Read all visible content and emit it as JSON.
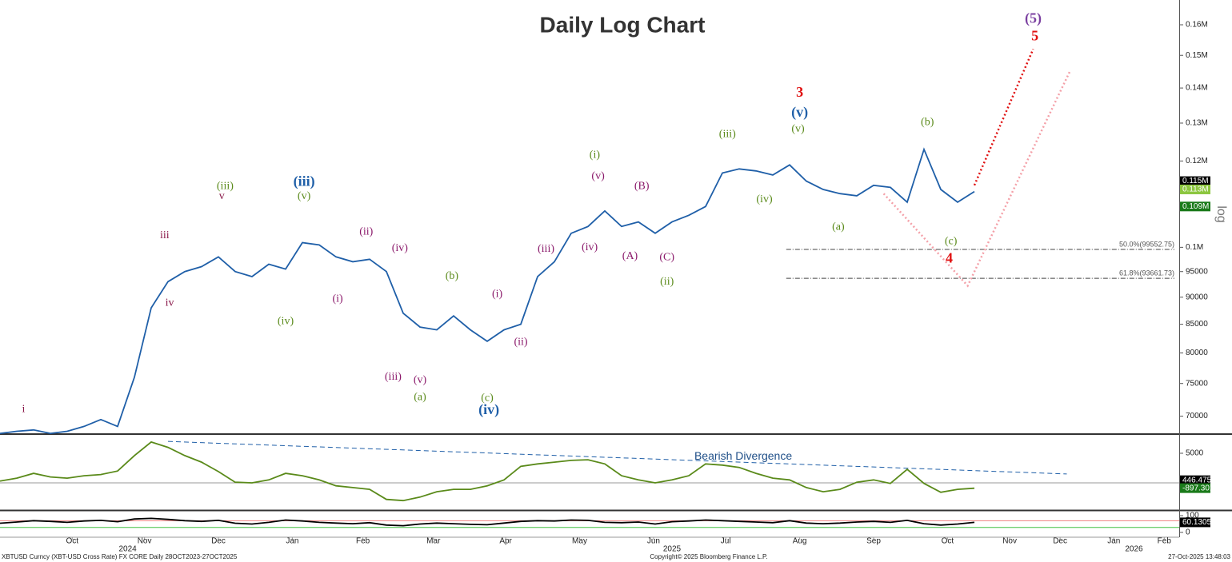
{
  "chart_data": [
    {
      "type": "line",
      "title": "Daily Log Chart",
      "axis_label": "log",
      "log_scale": true,
      "color": "#1f5fa8",
      "xlim": [
        0,
        70
      ],
      "ylim": [
        67400,
        168600
      ],
      "yticks": [
        {
          "value": 160000,
          "label": "0.16M"
        },
        {
          "value": 150000,
          "label": "0.15M"
        },
        {
          "value": 140000,
          "label": "0.14M"
        },
        {
          "value": 130000,
          "label": "0.13M"
        },
        {
          "value": 120000,
          "label": "0.12M"
        },
        {
          "value": 100000,
          "label": "0.1M"
        },
        95000,
        90000,
        85000,
        80000,
        75000,
        70000
      ],
      "values": [
        67500,
        67800,
        68000,
        67500,
        67800,
        68500,
        69500,
        68500,
        76000,
        88000,
        93000,
        95000,
        96000,
        98000,
        95000,
        94000,
        96500,
        95500,
        101000,
        100500,
        98000,
        97000,
        97500,
        95000,
        87000,
        84500,
        84000,
        86500,
        84000,
        82000,
        84000,
        85000,
        94000,
        97000,
        103000,
        104500,
        108000,
        104500,
        105500,
        103000,
        105500,
        107000,
        109000,
        117000,
        118000,
        117500,
        116500,
        119000,
        115000,
        113000,
        112000,
        111500,
        114000,
        113500,
        110000,
        123000,
        113000,
        110000,
        112500
      ],
      "price_tags": [
        {
          "value": 115000,
          "label": "0.115M",
          "color": "#000000"
        },
        {
          "value": 113000,
          "label": "0.113M",
          "color": "#8cc63f"
        },
        {
          "value": 109000,
          "label": "0.109M",
          "color": "#1a7a1a"
        }
      ],
      "levels": [
        {
          "label": "50.0%(99552.75)",
          "value": 99552.75,
          "from": 46.8
        },
        {
          "label": "61.8%(93661.73)",
          "value": 93661.73,
          "from": 46.8
        }
      ],
      "projections": [
        {
          "color": "#e01010",
          "points": [
            [
              58,
              114000
            ],
            [
              61.5,
              152000
            ]
          ]
        },
        {
          "color": "#f4a0a8",
          "points": [
            [
              52.6,
              112000
            ],
            [
              57.6,
              92200
            ],
            [
              63.7,
              145200
            ]
          ]
        }
      ],
      "annotations": [
        {
          "text": "i",
          "x": 1.4,
          "y": 71000,
          "color": "#8b1a4b"
        },
        {
          "text": "iii",
          "x": 9.8,
          "y": 102500,
          "color": "#8b1a4b"
        },
        {
          "text": "iv",
          "x": 10.1,
          "y": 88900,
          "color": "#8b1a4b"
        },
        {
          "text": "(iii)",
          "x": 13.4,
          "y": 113700,
          "color": "#5a8a1a"
        },
        {
          "text": "v",
          "x": 13.2,
          "y": 111300,
          "color": "#8b1a4b"
        },
        {
          "text": "(iv)",
          "x": 17,
          "y": 85500,
          "color": "#5a8a1a"
        },
        {
          "text": "(iii)",
          "x": 18.1,
          "y": 114700,
          "color": "#1f5fa8"
        },
        {
          "text": "(v)",
          "x": 18.1,
          "y": 111300,
          "color": "#5a8a1a"
        },
        {
          "text": "(ii)",
          "x": 21.8,
          "y": 103300,
          "color": "#8b1a6b"
        },
        {
          "text": "(i)",
          "x": 20.1,
          "y": 89600,
          "color": "#8b1a6b"
        },
        {
          "text": "(iv)",
          "x": 23.8,
          "y": 99800,
          "color": "#8b1a6b"
        },
        {
          "text": "(iii)",
          "x": 23.4,
          "y": 76000,
          "color": "#8b1a6b"
        },
        {
          "text": "(v)",
          "x": 25,
          "y": 75500,
          "color": "#8b1a6b"
        },
        {
          "text": "(a)",
          "x": 25,
          "y": 72800,
          "color": "#5a8a1a"
        },
        {
          "text": "(b)",
          "x": 26.9,
          "y": 94000,
          "color": "#5a8a1a"
        },
        {
          "text": "(i)",
          "x": 29.6,
          "y": 90500,
          "color": "#8b1a6b"
        },
        {
          "text": "(ii)",
          "x": 31,
          "y": 81800,
          "color": "#8b1a6b"
        },
        {
          "text": "(c)",
          "x": 29,
          "y": 72700,
          "color": "#5a8a1a"
        },
        {
          "text": "(iv)",
          "x": 29.1,
          "y": 70800,
          "color": "#1f5fa8"
        },
        {
          "text": "(iii)",
          "x": 32.5,
          "y": 99600,
          "color": "#8b1a6b"
        },
        {
          "text": "(iv)",
          "x": 35.1,
          "y": 99900,
          "color": "#8b1a6b"
        },
        {
          "text": "(i)",
          "x": 35.4,
          "y": 121400,
          "color": "#5a8a1a"
        },
        {
          "text": "(v)",
          "x": 35.6,
          "y": 116100,
          "color": "#8b1a6b"
        },
        {
          "text": "(B)",
          "x": 38.2,
          "y": 113700,
          "color": "#8b1a6b"
        },
        {
          "text": "(A)",
          "x": 37.5,
          "y": 98100,
          "color": "#8b1a6b"
        },
        {
          "text": "(C)",
          "x": 39.7,
          "y": 97800,
          "color": "#8b1a6b"
        },
        {
          "text": "(ii)",
          "x": 39.7,
          "y": 92900,
          "color": "#5a8a1a"
        },
        {
          "text": "(iii)",
          "x": 43.3,
          "y": 126900,
          "color": "#5a8a1a"
        },
        {
          "text": "(iv)",
          "x": 45.5,
          "y": 110600,
          "color": "#5a8a1a"
        },
        {
          "text": "3",
          "x": 47.6,
          "y": 138400,
          "color": "#e01010"
        },
        {
          "text": "(v)",
          "x": 47.6,
          "y": 132700,
          "color": "#1f5fa8"
        },
        {
          "text": "(v)",
          "x": 47.5,
          "y": 128300,
          "color": "#5a8a1a"
        },
        {
          "text": "(a)",
          "x": 49.9,
          "y": 104300,
          "color": "#5a8a1a"
        },
        {
          "text": "(b)",
          "x": 55.2,
          "y": 130200,
          "color": "#5a8a1a"
        },
        {
          "text": "(c)",
          "x": 56.6,
          "y": 101200,
          "color": "#5a8a1a"
        },
        {
          "text": "4",
          "x": 56.5,
          "y": 97500,
          "color": "#e01010"
        },
        {
          "text": "5",
          "x": 61.6,
          "y": 155900,
          "color": "#e01010"
        },
        {
          "text": "(5)",
          "x": 61.5,
          "y": 161800,
          "color": "#7a3fa0"
        }
      ]
    },
    {
      "type": "line",
      "color": "#5a8a1a",
      "xlim": [
        0,
        70
      ],
      "ylim": [
        -4460,
        7970
      ],
      "yticks": [
        5000
      ],
      "values": [
        300,
        800,
        1600,
        1000,
        800,
        1200,
        1400,
        2000,
        4600,
        6900,
        6000,
        4600,
        3500,
        1900,
        100,
        0,
        500,
        1600,
        1200,
        500,
        -500,
        -800,
        -1100,
        -2800,
        -3000,
        -2400,
        -1500,
        -1100,
        -1100,
        -500,
        500,
        2800,
        3200,
        3500,
        3800,
        3900,
        3200,
        1200,
        500,
        0,
        500,
        1200,
        3200,
        3000,
        2600,
        1600,
        800,
        500,
        -800,
        -1500,
        -1100,
        100,
        500,
        -100,
        2300,
        -100,
        -1600,
        -1100,
        -900
      ],
      "ref_lines": [
        {
          "value": 0,
          "color": "#999999"
        }
      ],
      "price_tags": [
        {
          "value": 446.4752,
          "label": "446.4752",
          "color": "#000000"
        },
        {
          "value": -897.301,
          "label": "-897.301",
          "color": "#1a7a1a"
        }
      ],
      "trendline": {
        "label": "Bearish Divergence",
        "points": [
          [
            10,
            7000
          ],
          [
            63.5,
            1500
          ]
        ]
      }
    },
    {
      "type": "line",
      "color": "#000000",
      "xlim": [
        0,
        70
      ],
      "ylim": [
        -19,
        124
      ],
      "yticks": [
        100,
        0
      ],
      "values": [
        55,
        62,
        70,
        66,
        60,
        68,
        72,
        64,
        80,
        84,
        78,
        70,
        66,
        72,
        55,
        50,
        60,
        74,
        68,
        60,
        56,
        52,
        58,
        44,
        40,
        50,
        56,
        52,
        48,
        46,
        56,
        66,
        70,
        68,
        74,
        72,
        60,
        58,
        62,
        50,
        64,
        68,
        74,
        70,
        66,
        62,
        58,
        70,
        56,
        52,
        56,
        62,
        66,
        60,
        72,
        52,
        44,
        50,
        60
      ],
      "ref_lines": [
        {
          "value": 70,
          "color": "#f08080"
        },
        {
          "value": 30,
          "color": "#40c040"
        }
      ],
      "price_tags": [
        {
          "value": 60.1305,
          "label": "60.1305",
          "color": "#000000"
        }
      ],
      "xticks": [
        {
          "value": 4.3,
          "label": "Oct"
        },
        {
          "value": 8.6,
          "label": "Nov"
        },
        {
          "value": 13,
          "label": "Dec"
        },
        {
          "value": 17.4,
          "label": "Jan"
        },
        {
          "value": 21.6,
          "label": "Feb"
        },
        {
          "value": 25.8,
          "label": "Mar"
        },
        {
          "value": 30.1,
          "label": "Apr"
        },
        {
          "value": 34.5,
          "label": "May"
        },
        {
          "value": 38.9,
          "label": "Jun"
        },
        {
          "value": 43.2,
          "label": "Jul"
        },
        {
          "value": 47.6,
          "label": "Aug"
        },
        {
          "value": 52,
          "label": "Sep"
        },
        {
          "value": 56.4,
          "label": "Oct"
        },
        {
          "value": 60.1,
          "label": "Nov"
        },
        {
          "value": 63.1,
          "label": "Dec"
        },
        {
          "value": 66.3,
          "label": "Jan"
        },
        {
          "value": 69.3,
          "label": "Feb"
        }
      ],
      "year_ticks": [
        {
          "value": 7.6,
          "label": "2024"
        },
        {
          "value": 40,
          "label": "2025"
        },
        {
          "value": 67.5,
          "label": "2026"
        }
      ]
    }
  ],
  "footer": {
    "left": "XBTUSD Curncy (XBT-USD Cross Rate) FX CORE Daily 28OCT2023-27OCT2025",
    "center": "Copyright© 2025 Bloomberg Finance L.P.",
    "right": "27-Oct-2025 13:48:03"
  }
}
